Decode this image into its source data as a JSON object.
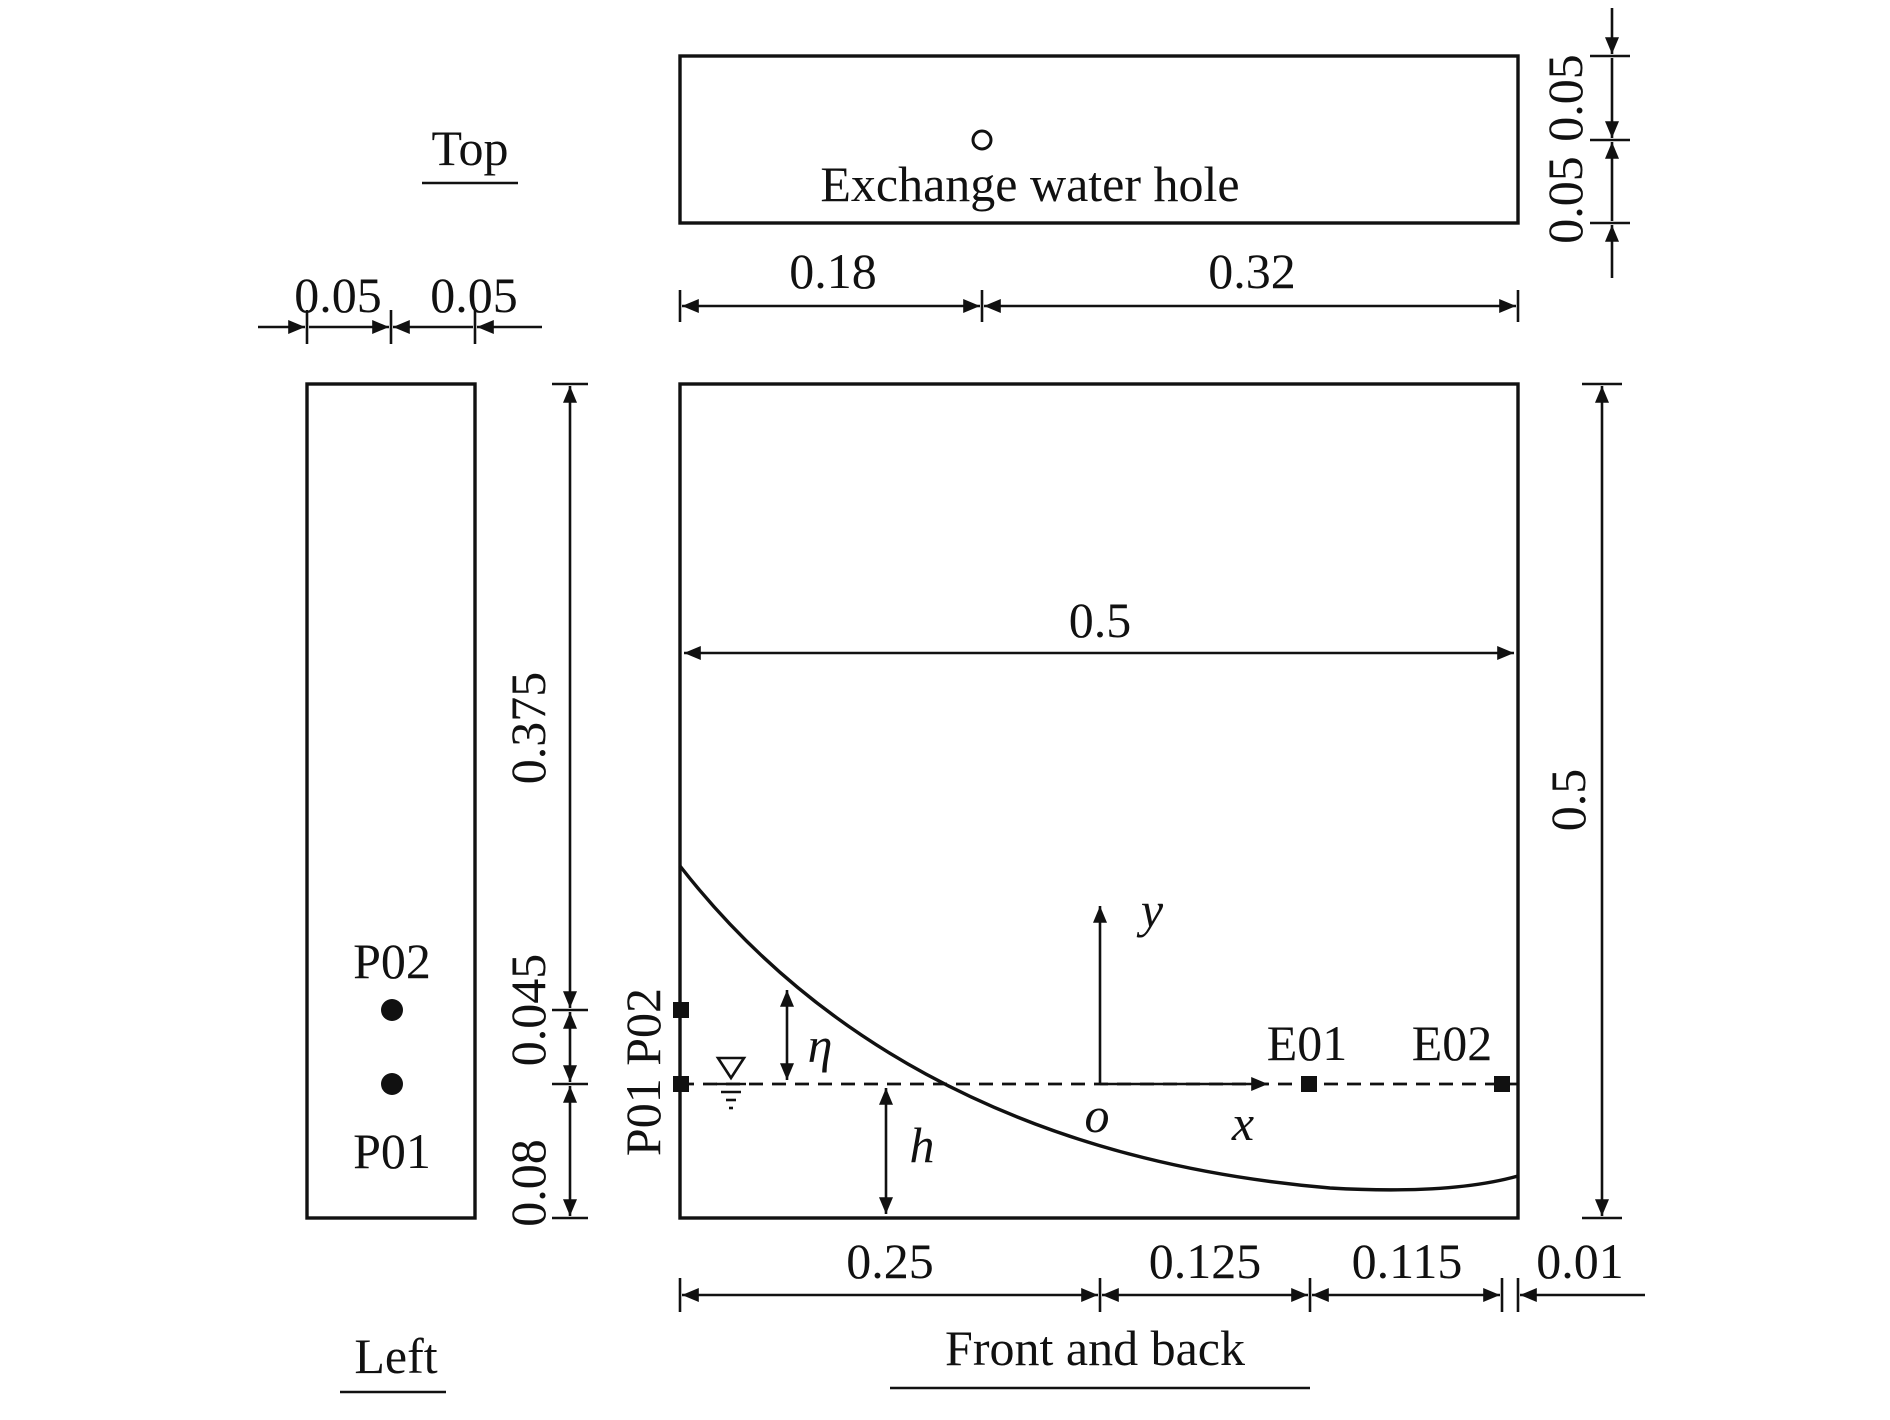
{
  "views": {
    "top_title": "Top",
    "left_title": "Left",
    "front_title": "Front and back"
  },
  "top_view": {
    "hole_label": "Exchange water hole",
    "dims": {
      "left_offset": "0.18",
      "right_offset": "0.32",
      "upper_offset": "0.05",
      "lower_offset": "0.05"
    }
  },
  "left_view": {
    "dims": {
      "width_a": "0.05",
      "width_b": "0.05",
      "h_top": "0.375",
      "h_mid": "0.045",
      "h_bottom": "0.08"
    },
    "probe_upper": "P02",
    "probe_lower": "P01"
  },
  "front_view": {
    "dims": {
      "width": "0.5",
      "height": "0.5",
      "bottom_a": "0.25",
      "bottom_b": "0.125",
      "bottom_c": "0.115",
      "bottom_d": "0.01"
    },
    "probe_labels": "P01 P02",
    "axis_x": "x",
    "axis_y": "y",
    "origin": "o",
    "eta": "η",
    "h": "h",
    "e01": "E01",
    "e02": "E02"
  }
}
